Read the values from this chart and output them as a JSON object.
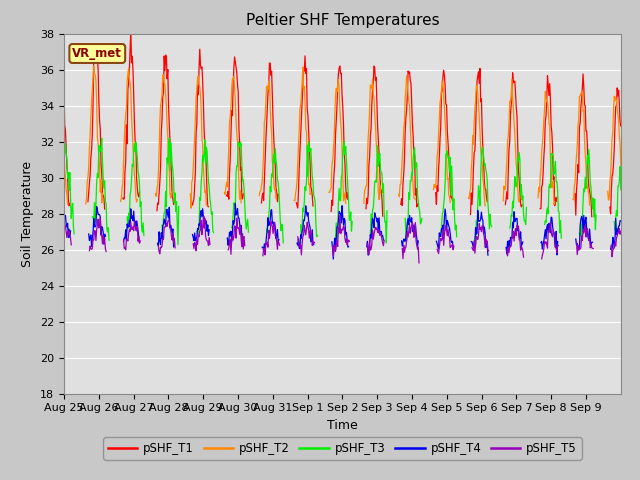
{
  "title": "Peltier SHF Temperatures",
  "ylabel": "Soil Temperature",
  "xlabel": "Time",
  "annotation": "VR_met",
  "ylim": [
    18,
    38
  ],
  "xtick_labels": [
    "Aug 25",
    "Aug 26",
    "Aug 27",
    "Aug 28",
    "Aug 29",
    "Aug 30",
    "Aug 31",
    "Sep 1",
    "Sep 2",
    "Sep 3",
    "Sep 4",
    "Sep 5",
    "Sep 6",
    "Sep 7",
    "Sep 8",
    "Sep 9"
  ],
  "series_colors": {
    "pSHF_T1": "#ff0000",
    "pSHF_T2": "#ff8800",
    "pSHF_T3": "#00ee00",
    "pSHF_T4": "#0000ee",
    "pSHF_T5": "#9900bb"
  },
  "background_color": "#e0e0e0",
  "grid_color": "#ffffff",
  "fig_facecolor": "#c8c8c8",
  "title_fontsize": 11,
  "label_fontsize": 9,
  "tick_fontsize": 8,
  "n_days": 16,
  "ppd": 48,
  "T1_amp": 8.8,
  "T1_base": 28.5,
  "T2_amp": 7.2,
  "T2_base": 28.8,
  "T3_amp": 4.5,
  "T3_base": 27.2,
  "T4_amp": 1.3,
  "T4_base": 26.7,
  "T5_amp": 0.9,
  "T5_base": 26.4,
  "T1_phase": 0.42,
  "T2_phase": 0.36,
  "T3_phase": 0.55,
  "T4_phase": 0.44,
  "T5_phase": 0.46
}
